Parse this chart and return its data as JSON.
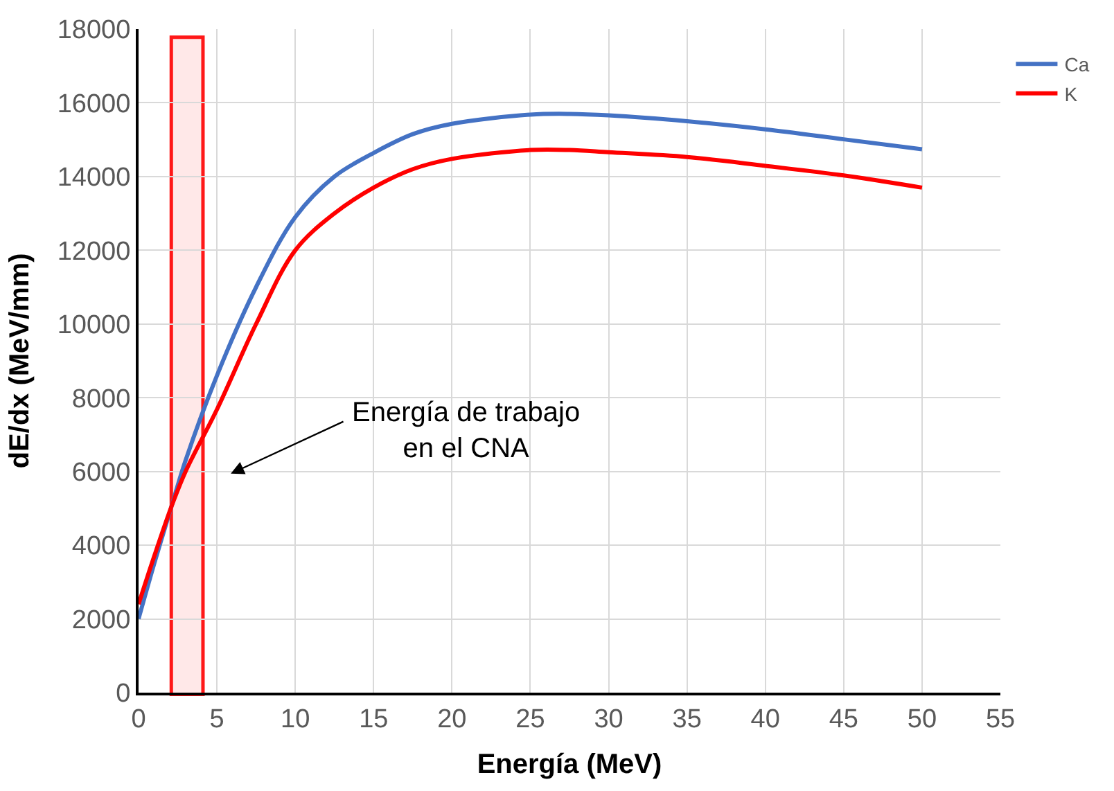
{
  "chart_data": {
    "type": "line",
    "xlabel": "Energía (MeV)",
    "ylabel": "dE/dx (MeV/mm)",
    "x": [
      0,
      1,
      2.1,
      3,
      5,
      7.5,
      10,
      12.5,
      15,
      17.5,
      20,
      25,
      27.5,
      30,
      35,
      40,
      45,
      50
    ],
    "series": [
      {
        "name": "Ca",
        "color": "#4472c4",
        "values": [
          2000,
          3500,
          5050,
          6300,
          8600,
          11000,
          12900,
          14000,
          14640,
          15150,
          15430,
          15680,
          15700,
          15660,
          15500,
          15280,
          15010,
          14740
        ]
      },
      {
        "name": "K",
        "color": "#ff0000",
        "values": [
          2400,
          3700,
          5050,
          6000,
          7680,
          10000,
          12000,
          13000,
          13700,
          14200,
          14480,
          14720,
          14720,
          14660,
          14530,
          14290,
          14030,
          13700
        ]
      }
    ],
    "xlim": [
      0,
      55
    ],
    "xticks": [
      0,
      5,
      10,
      15,
      20,
      25,
      30,
      35,
      40,
      45,
      50,
      55
    ],
    "ylim": [
      0,
      18000
    ],
    "yticks": [
      0,
      2000,
      4000,
      6000,
      8000,
      10000,
      12000,
      14000,
      16000,
      18000
    ],
    "grid": true,
    "legend": "top right",
    "marker": "none",
    "line_style": "solid",
    "bands": [
      {
        "axis": "x",
        "from": 2.2,
        "to": 4.0,
        "label": null,
        "color": "#ff0000"
      }
    ],
    "annotations": [
      "Energía de trabajo\nen el CNA"
    ]
  }
}
